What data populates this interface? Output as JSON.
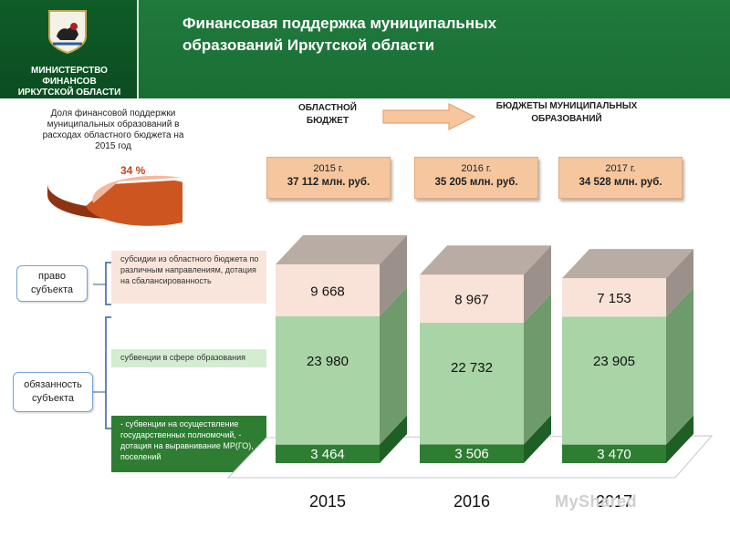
{
  "header": {
    "title_line1": "Финансовая поддержка муниципальных",
    "title_line2": "образований Иркутской области",
    "ministry_line1": "МИНИСТЕРСТВО ФИНАНСОВ",
    "ministry_line2": "ИРКУТСКОЙ ОБЛАСТИ"
  },
  "pie": {
    "caption": "Доля финансовой поддержки муниципальных образований в расходах областного бюджета на 2015 год",
    "label": "34 %",
    "share": 0.34,
    "colors": {
      "main": "#cc5520",
      "slice": "#f2b9a0"
    }
  },
  "flow": {
    "from": "ОБЛАСТНОЙ БЮДЖЕТ",
    "to": "БЮДЖЕТЫ МУНИЦИПАЛЬНЫХ ОБРАЗОВАНИЙ"
  },
  "totals": [
    {
      "year": "2015 г.",
      "amount": "37 112 млн. руб."
    },
    {
      "year": "2016 г.",
      "amount": "35 205 млн. руб."
    },
    {
      "year": "2017 г.",
      "amount": "34 528 млн. руб."
    }
  ],
  "side": {
    "right_label": "право субъекта",
    "duty_label": "обязанность субъекта",
    "legend_top": "субсидии из областного бюджета по различным направлениям, дотация на сбалансированность",
    "legend_mid": "субвенции в сфере образования",
    "legend_bottom": "- субвенции на осуществление государственных полномочий, - дотация на выравнивание МР(ГО), поселений"
  },
  "watermark": "MyShared",
  "chart_data": {
    "type": "bar",
    "stacked": true,
    "categories": [
      "2015",
      "2016",
      "2017"
    ],
    "series": [
      {
        "values": [
          3464,
          3506,
          3470
        ],
        "color": "#2e7d32",
        "top_color": "#4a9a4c",
        "side_color": "#1f5e24"
      },
      {
        "values": [
          23980,
          22732,
          23905
        ],
        "color": "#a9d4a6",
        "top_color": "#c2e0c0",
        "side_color": "#6f9a6c"
      },
      {
        "values": [
          9668,
          8967,
          7153
        ],
        "color": "#f9e3d8",
        "top_color": "#b8aca4",
        "side_color": "#9c918a"
      }
    ],
    "labels": [
      [
        "3 464",
        "23 980",
        "9 668"
      ],
      [
        "3 506",
        "22 732",
        "8 967"
      ],
      [
        "3 470",
        "23 905",
        "7 153"
      ]
    ]
  }
}
